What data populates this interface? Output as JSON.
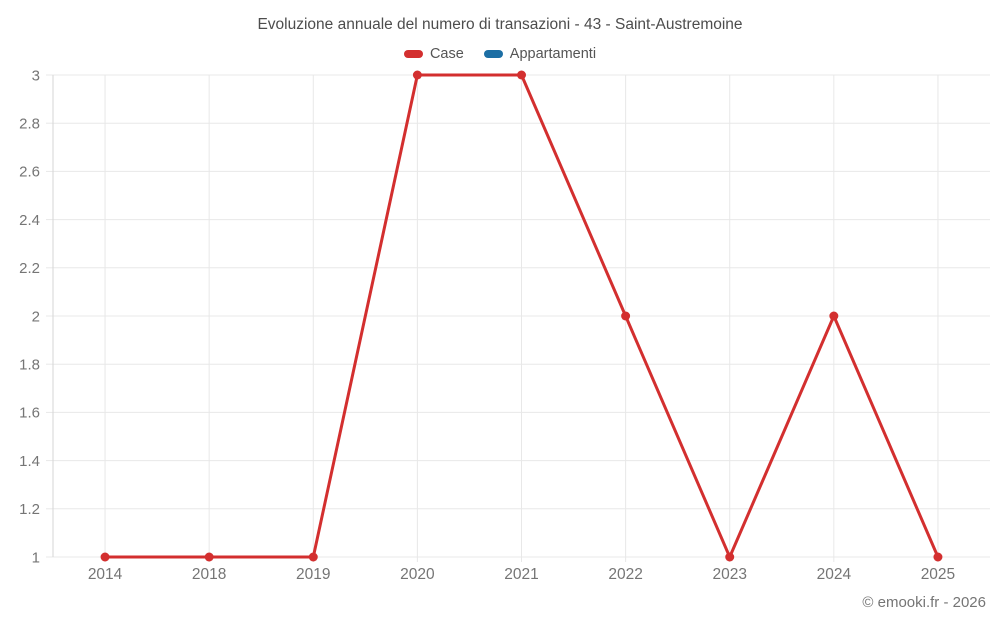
{
  "chart_data": {
    "type": "line",
    "title": "Evoluzione annuale del numero di transazioni - 43 - Saint-Austremoine",
    "categories": [
      "2014",
      "2018",
      "2019",
      "2020",
      "2021",
      "2022",
      "2023",
      "2024",
      "2025"
    ],
    "series": [
      {
        "name": "Case",
        "color": "#d32f2f",
        "values": [
          1,
          1,
          1,
          3,
          3,
          2,
          1,
          2,
          1
        ]
      },
      {
        "name": "Appartamenti",
        "color": "#1c6ea4",
        "values": []
      }
    ],
    "ylim": [
      1,
      3
    ],
    "ytick_step": 0.2,
    "ytick_labels": [
      "1",
      "1.2",
      "1.4",
      "1.6",
      "1.8",
      "2",
      "2.2",
      "2.4",
      "2.6",
      "2.8",
      "3"
    ],
    "grid": true,
    "legend_position": "top",
    "xlabel": "",
    "ylabel": ""
  },
  "footer": {
    "copyright": "© emooki.fr - 2026"
  },
  "style": {
    "grid_color": "#e8e8e8",
    "axis_line_color": "#d6d6d6",
    "tick_label_color": "#757575",
    "title_color": "#4d4d4d",
    "marker_radius": 4.5,
    "line_width": 3
  }
}
